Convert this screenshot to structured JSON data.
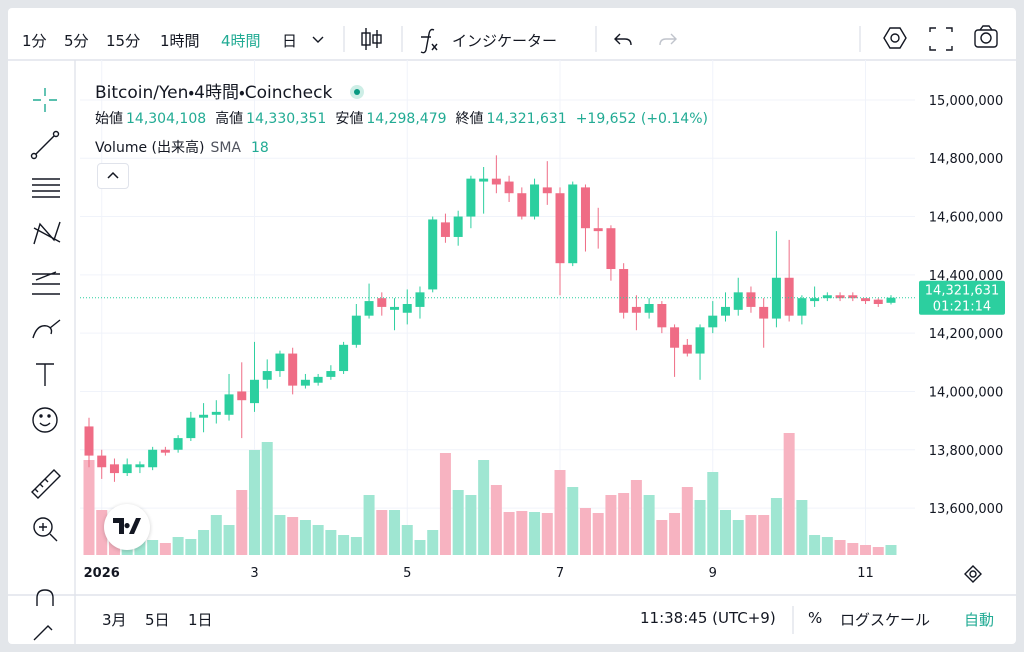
{
  "toolbar": {
    "intervals": [
      "1分",
      "5分",
      "15分",
      "1時間",
      "4時間",
      "日"
    ],
    "active_interval": 4,
    "indicators": "インジケーター"
  },
  "legend": {
    "title": "Bitcoin/Yen・4時間・Coincheck",
    "ohlc": [
      {
        "label": "始値",
        "value": "14,304,108"
      },
      {
        "label": "高値",
        "value": "14,330,351"
      },
      {
        "label": "安値",
        "value": "14,298,479"
      },
      {
        "label": "終値",
        "value": "14,321,631"
      }
    ],
    "change": "+19,652 (+0.14%)",
    "volume_label": "Volume (出来高)",
    "sma_label": "SMA",
    "sma_length": 18
  },
  "chart_data": {
    "type": "candlestick",
    "categories": [
      null,
      "2026",
      null,
      null,
      null,
      null,
      null,
      null,
      null,
      null,
      null,
      null,
      null,
      "3",
      null,
      null,
      null,
      null,
      null,
      null,
      null,
      null,
      null,
      null,
      null,
      "5",
      null,
      null,
      null,
      null,
      null,
      null,
      null,
      null,
      null,
      null,
      null,
      "7",
      null,
      null,
      null,
      null,
      null,
      null,
      null,
      null,
      null,
      null,
      null,
      "9",
      null,
      null,
      null,
      null,
      null,
      null,
      null,
      null,
      null,
      null,
      null,
      "11",
      null,
      null
    ],
    "open": [
      13880000,
      13780000,
      13750000,
      13720000,
      13740000,
      13740000,
      13800000,
      13800000,
      13840000,
      13910000,
      13920000,
      13920000,
      14000000,
      13960000,
      14040000,
      14070000,
      14130000,
      14020000,
      14030000,
      14050000,
      14070000,
      14160000,
      14260000,
      14320000,
      14280000,
      14270000,
      14290000,
      14350000,
      14580000,
      14530000,
      14600000,
      14720000,
      14730000,
      14720000,
      14680000,
      14600000,
      14700000,
      14680000,
      14440000,
      14700000,
      14560000,
      14560000,
      14420000,
      14290000,
      14270000,
      14300000,
      14220000,
      14160000,
      14130000,
      14220000,
      14260000,
      14280000,
      14340000,
      14290000,
      14250000,
      14390000,
      14260000,
      14310000,
      14320000,
      14330000,
      14330000,
      14320000,
      14315000,
      14304108
    ],
    "high": [
      13910000,
      13800000,
      13770000,
      13770000,
      13760000,
      13810000,
      13810000,
      13850000,
      13930000,
      13960000,
      13970000,
      14060000,
      14100000,
      14170000,
      14110000,
      14140000,
      14150000,
      14060000,
      14060000,
      14090000,
      14170000,
      14300000,
      14370000,
      14340000,
      14320000,
      14350000,
      14360000,
      14600000,
      14610000,
      14620000,
      14740000,
      14770000,
      14810000,
      14740000,
      14700000,
      14730000,
      14790000,
      14700000,
      14720000,
      14710000,
      14630000,
      14570000,
      14440000,
      14330000,
      14320000,
      14310000,
      14230000,
      14180000,
      14230000,
      14310000,
      14340000,
      14390000,
      14360000,
      14320000,
      14550000,
      14520000,
      14330000,
      14360000,
      14340000,
      14340000,
      14340000,
      14320000,
      14320000,
      14330351
    ],
    "low": [
      13740000,
      13700000,
      13690000,
      13710000,
      13720000,
      13730000,
      13780000,
      13790000,
      13830000,
      13860000,
      13890000,
      13900000,
      13840000,
      13930000,
      14010000,
      14050000,
      13990000,
      14010000,
      14020000,
      14040000,
      14060000,
      14150000,
      14250000,
      14260000,
      14210000,
      14230000,
      14250000,
      14340000,
      14510000,
      14500000,
      14560000,
      14610000,
      14680000,
      14650000,
      14590000,
      14590000,
      14640000,
      14330000,
      14430000,
      14480000,
      14490000,
      14380000,
      14250000,
      14210000,
      14250000,
      14200000,
      14050000,
      14120000,
      14040000,
      14200000,
      14240000,
      14260000,
      14270000,
      14150000,
      14220000,
      14240000,
      14230000,
      14290000,
      14310000,
      14310000,
      14310000,
      14300000,
      14290000,
      14298479
    ],
    "close": [
      13780000,
      13740000,
      13720000,
      13750000,
      13750000,
      13800000,
      13790000,
      13840000,
      13910000,
      13920000,
      13930000,
      13990000,
      13970000,
      14040000,
      14070000,
      14130000,
      14020000,
      14040000,
      14050000,
      14070000,
      14160000,
      14260000,
      14310000,
      14290000,
      14290000,
      14300000,
      14340000,
      14590000,
      14530000,
      14600000,
      14730000,
      14730000,
      14710000,
      14680000,
      14600000,
      14710000,
      14680000,
      14440000,
      14710000,
      14560000,
      14550000,
      14420000,
      14270000,
      14270000,
      14300000,
      14220000,
      14150000,
      14130000,
      14220000,
      14260000,
      14290000,
      14340000,
      14290000,
      14250000,
      14390000,
      14260000,
      14320000,
      14320000,
      14330000,
      14320000,
      14320000,
      14310000,
      14300000,
      14321631
    ],
    "volume": [
      95,
      45,
      35,
      25,
      15,
      15,
      12,
      18,
      16,
      25,
      40,
      30,
      65,
      105,
      113,
      40,
      38,
      35,
      30,
      25,
      20,
      18,
      60,
      45,
      45,
      30,
      15,
      25,
      102,
      65,
      60,
      95,
      70,
      43,
      44,
      43,
      42,
      85,
      68,
      47,
      42,
      60,
      62,
      75,
      60,
      35,
      42,
      68,
      55,
      83,
      45,
      35,
      40,
      40,
      57,
      122,
      55,
      20,
      18,
      15,
      12,
      10,
      8,
      10
    ],
    "volume_lim": [
      0,
      495
    ],
    "up_color": "#2ccf9f",
    "down_color": "#ef6c85",
    "volume_up_color": "#9fe6d2",
    "volume_down_color": "#f7b3c1",
    "ylim": [
      13439000,
      15137000
    ],
    "yticks": [
      {
        "value": 13600000,
        "label": "13,600,000"
      },
      {
        "value": 13800000,
        "label": "13,800,000"
      },
      {
        "value": 14000000,
        "label": "14,000,000"
      },
      {
        "value": 14200000,
        "label": "14,200,000"
      },
      {
        "value": 14400000,
        "label": "14,400,000"
      },
      {
        "value": 14600000,
        "label": "14,600,000"
      },
      {
        "value": 14800000,
        "label": "14,800,000"
      },
      {
        "value": 15000000,
        "label": "15,000,000"
      }
    ],
    "grid": true,
    "last_price": {
      "label": "14,321,631",
      "countdown": "01:21:14"
    }
  },
  "bottom_bar": {
    "ranges": [
      "3月",
      "5日",
      "1日"
    ],
    "time": "11:38:45 (UTC+9)",
    "percent": "%",
    "log_scale": "ログスケール",
    "auto": "自動"
  }
}
